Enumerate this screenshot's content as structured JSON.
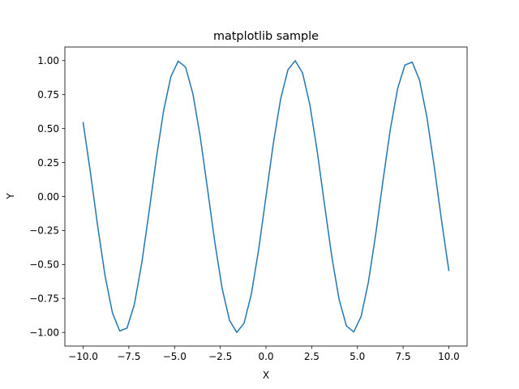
{
  "chart_data": {
    "type": "line",
    "title": "matplotlib sample",
    "xlabel": "X",
    "ylabel": "Y",
    "xlim": [
      -11.0,
      11.0
    ],
    "ylim": [
      -1.1,
      1.1
    ],
    "xticks": [
      -10.0,
      -7.5,
      -5.0,
      -2.5,
      0.0,
      2.5,
      5.0,
      7.5,
      10.0
    ],
    "xtick_labels": [
      "−10.0",
      "−7.5",
      "−5.0",
      "−2.5",
      "0.0",
      "2.5",
      "5.0",
      "7.5",
      "10.0"
    ],
    "yticks": [
      -1.0,
      -0.75,
      -0.5,
      -0.25,
      0.0,
      0.25,
      0.5,
      0.75,
      1.0
    ],
    "ytick_labels": [
      "−1.00",
      "−0.75",
      "−0.50",
      "−0.25",
      "0.00",
      "0.25",
      "0.50",
      "0.75",
      "1.00"
    ],
    "grid": false,
    "legend": "none",
    "series": [
      {
        "color": "#1f77b4",
        "x": [
          -10.0,
          -9.6,
          -9.2,
          -8.8,
          -8.4,
          -8.0,
          -7.6,
          -7.2,
          -6.8,
          -6.4,
          -6.0,
          -5.6,
          -5.2,
          -4.8,
          -4.4,
          -4.0,
          -3.6,
          -3.2,
          -2.8,
          -2.4,
          -2.0,
          -1.6,
          -1.2,
          -0.8,
          -0.4,
          0.0,
          0.4,
          0.8,
          1.2,
          1.6,
          2.0,
          2.4,
          2.8,
          3.2,
          3.6,
          4.0,
          4.4,
          4.8,
          5.2,
          5.6,
          6.0,
          6.4,
          6.8,
          7.2,
          7.6,
          8.0,
          8.4,
          8.8,
          9.2,
          9.6,
          10.0
        ],
        "y": [
          0.544,
          0.174,
          -0.223,
          -0.585,
          -0.855,
          -0.989,
          -0.968,
          -0.794,
          -0.494,
          -0.117,
          0.279,
          0.631,
          0.883,
          0.996,
          0.952,
          0.757,
          0.443,
          0.058,
          -0.335,
          -0.675,
          -0.909,
          -0.9996,
          -0.932,
          -0.717,
          -0.389,
          0.0,
          0.389,
          0.717,
          0.932,
          0.9996,
          0.909,
          0.675,
          0.335,
          -0.058,
          -0.443,
          -0.757,
          -0.952,
          -0.996,
          -0.883,
          -0.631,
          -0.279,
          0.117,
          0.494,
          0.794,
          0.968,
          0.989,
          0.855,
          0.585,
          0.223,
          -0.174,
          -0.544
        ]
      }
    ]
  }
}
